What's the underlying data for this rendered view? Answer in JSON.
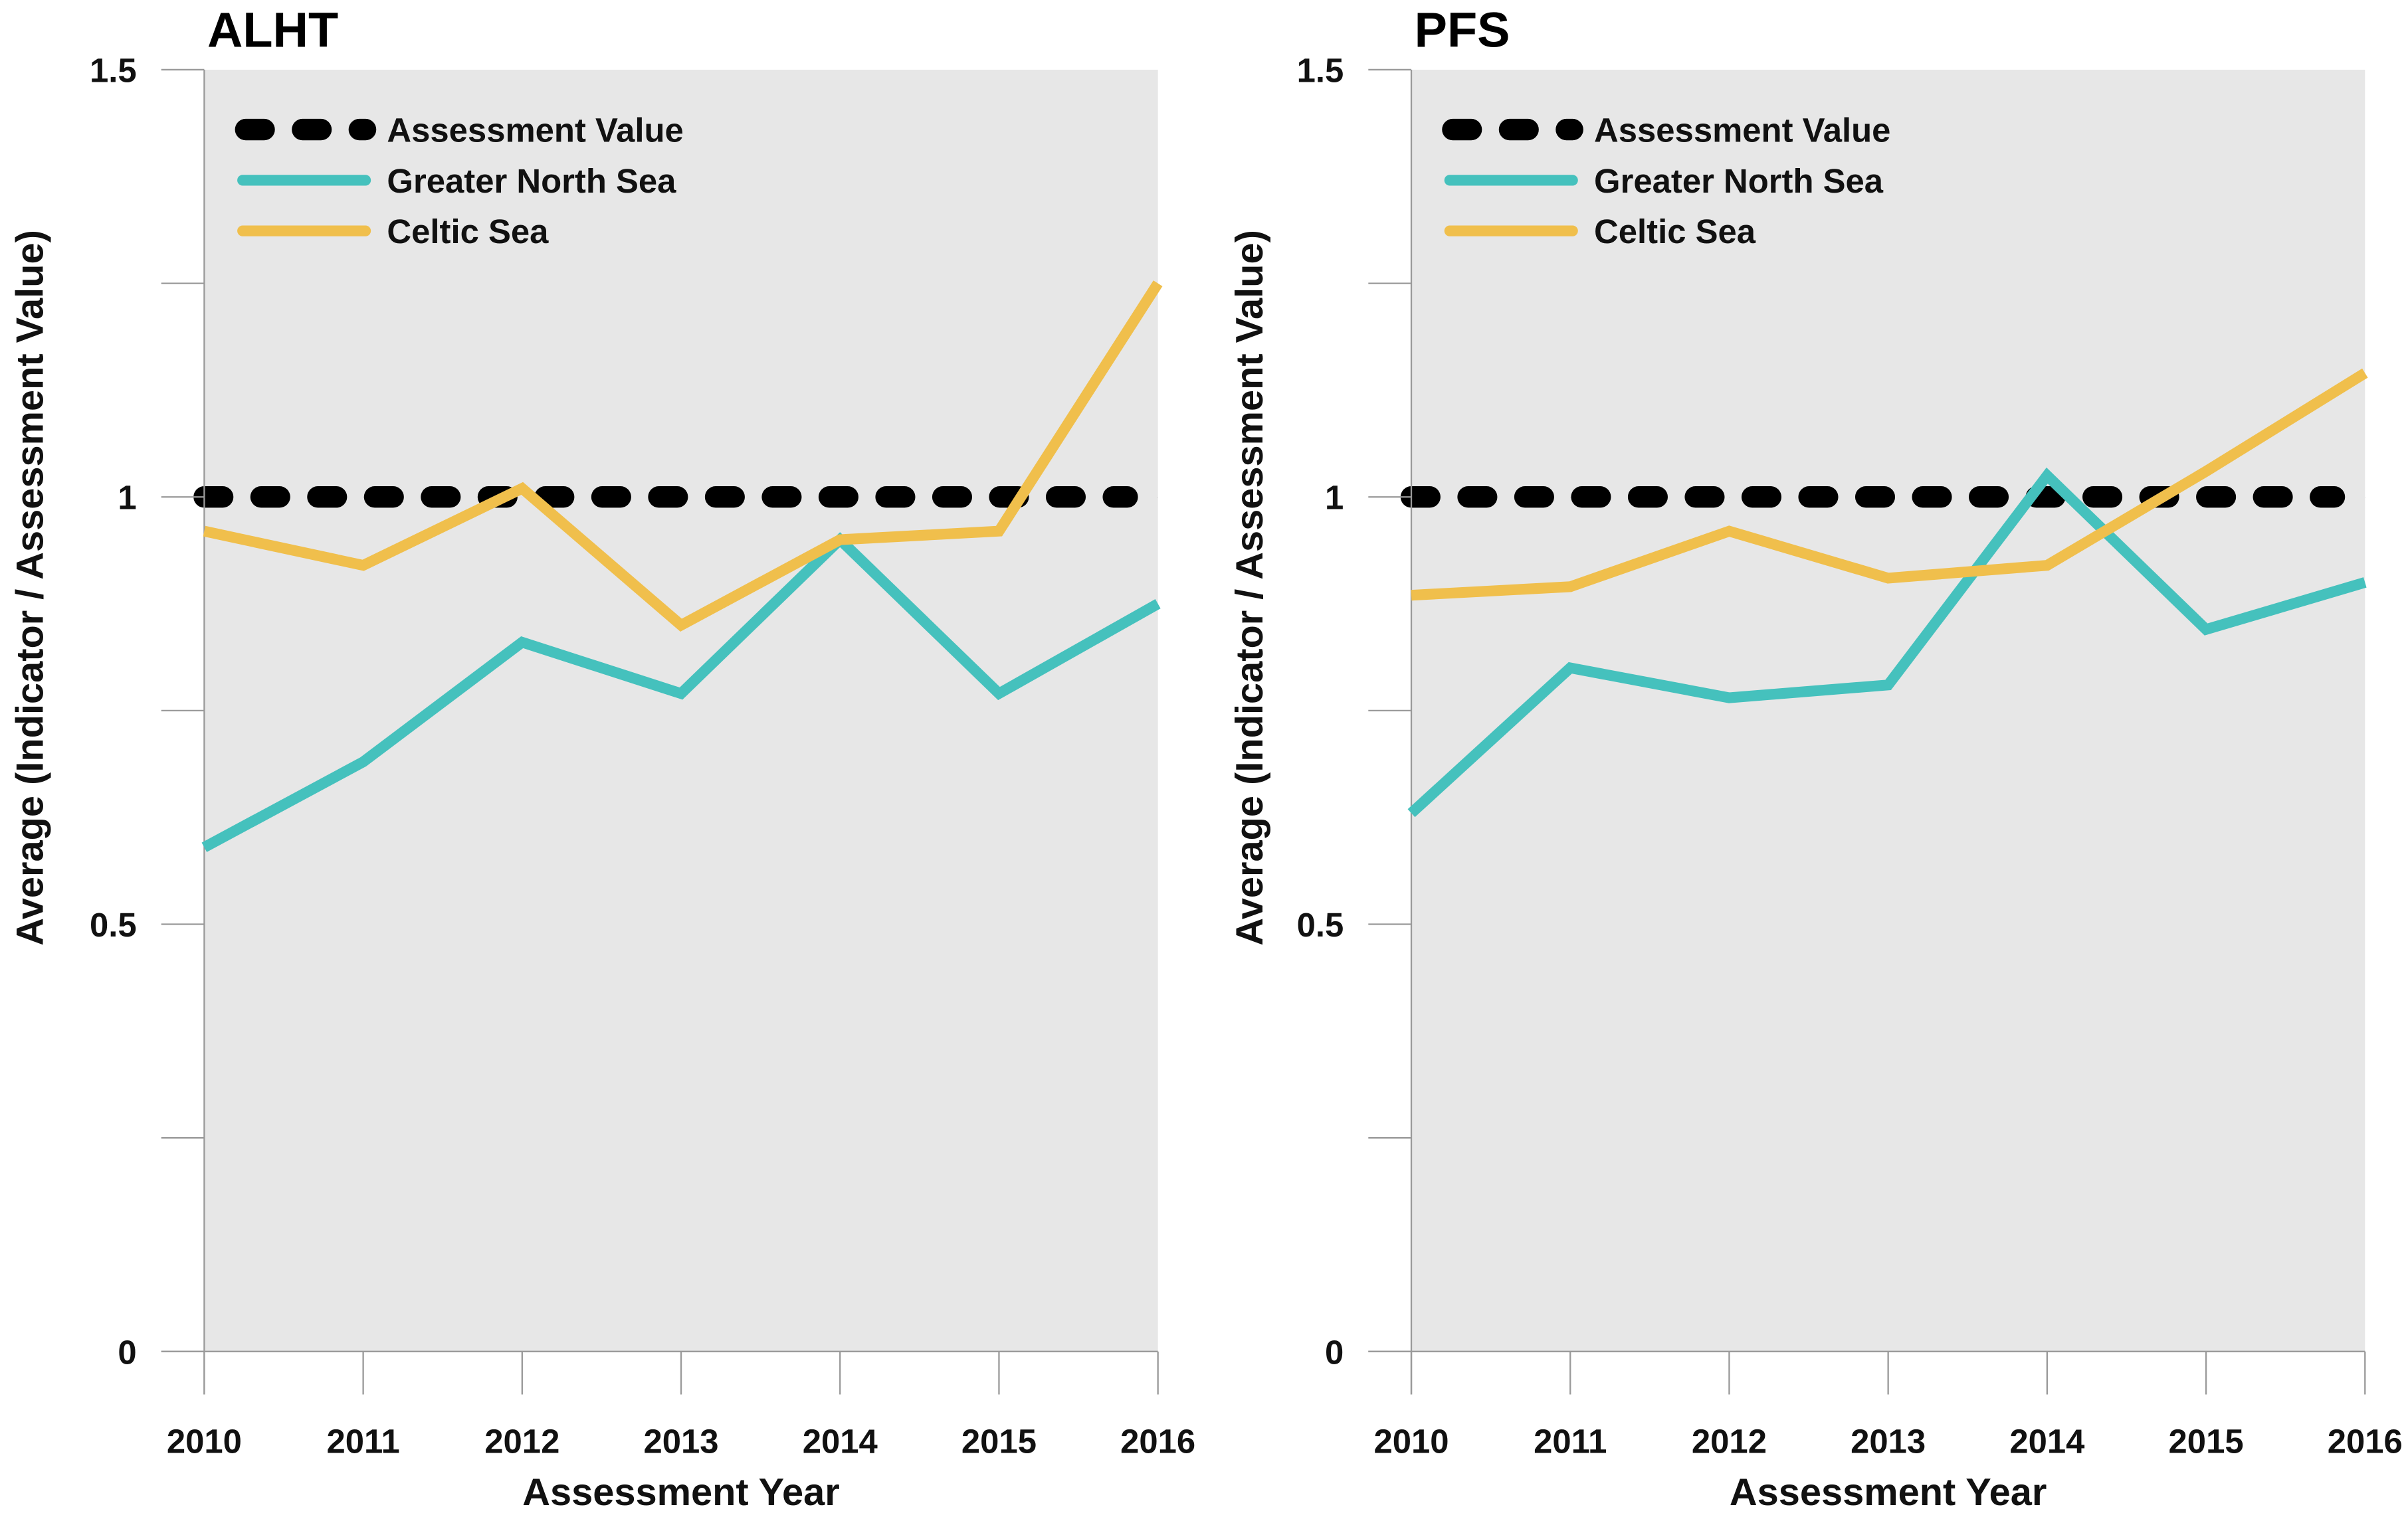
{
  "chart_data": [
    {
      "type": "line",
      "title": "ALHT",
      "xlabel": "Assessment Year",
      "ylabel": "Average (Indicator / Assessment Value)",
      "x": [
        2010,
        2011,
        2012,
        2013,
        2014,
        2015,
        2016
      ],
      "x_tick_labels": [
        "2010",
        "2011",
        "2012",
        "2013",
        "2014",
        "2015",
        "2016"
      ],
      "y_tick_labels": [
        "0",
        "0.5",
        "1",
        "1.5"
      ],
      "y_ticks": [
        0,
        0.5,
        1,
        1.5
      ],
      "ylim": [
        0,
        1.5
      ],
      "grid": false,
      "legend_placement": "top-left",
      "series": [
        {
          "name": "Assessment Value",
          "color": "#000000",
          "style": "dotted",
          "values": [
            1,
            1,
            1,
            1,
            1,
            1,
            1
          ]
        },
        {
          "name": "Greater North Sea",
          "color": "#45c1bd",
          "style": "solid",
          "values": [
            0.59,
            0.69,
            0.83,
            0.77,
            0.95,
            0.77,
            0.875
          ]
        },
        {
          "name": "Celtic Sea",
          "color": "#f0bf4c",
          "style": "solid",
          "values": [
            0.96,
            0.92,
            1.01,
            0.85,
            0.95,
            0.96,
            1.25
          ]
        }
      ]
    },
    {
      "type": "line",
      "title": "PFS",
      "xlabel": "Assessment Year",
      "ylabel": "Average (Indicator / Assessment Value)",
      "x": [
        2010,
        2011,
        2012,
        2013,
        2014,
        2015,
        2016
      ],
      "x_tick_labels": [
        "2010",
        "2011",
        "2012",
        "2013",
        "2014",
        "2015",
        "2016"
      ],
      "y_tick_labels": [
        "0",
        "0.5",
        "1",
        "1.5"
      ],
      "y_ticks": [
        0,
        0.5,
        1,
        1.5
      ],
      "ylim": [
        0,
        1.5
      ],
      "grid": false,
      "legend_placement": "top-left",
      "series": [
        {
          "name": "Assessment Value",
          "color": "#000000",
          "style": "dotted",
          "values": [
            1,
            1,
            1,
            1,
            1,
            1,
            1
          ]
        },
        {
          "name": "Greater North Sea",
          "color": "#45c1bd",
          "style": "solid",
          "values": [
            0.63,
            0.8,
            0.765,
            0.78,
            1.025,
            0.845,
            0.9
          ]
        },
        {
          "name": "Celtic Sea",
          "color": "#f0bf4c",
          "style": "solid",
          "values": [
            0.885,
            0.895,
            0.96,
            0.905,
            0.92,
            1.03,
            1.145
          ]
        }
      ]
    }
  ]
}
